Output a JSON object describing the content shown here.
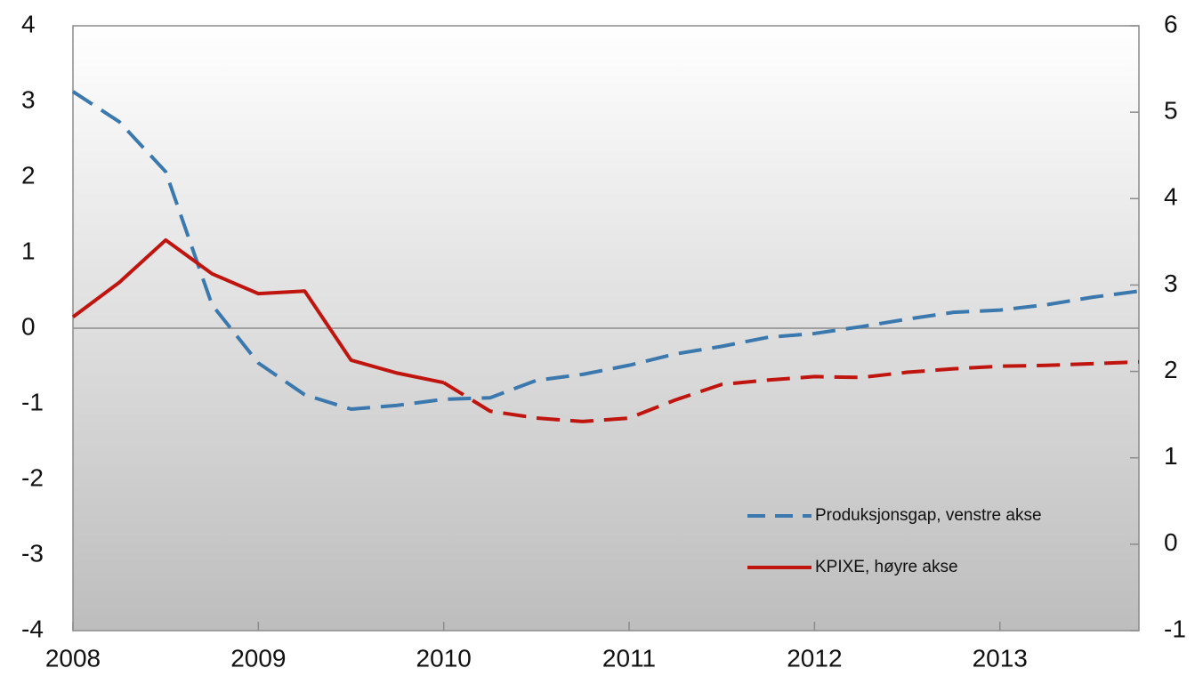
{
  "chart_data": {
    "type": "line",
    "x": [
      2008,
      2008.25,
      2008.5,
      2008.75,
      2009,
      2009.25,
      2009.5,
      2009.75,
      2010,
      2010.25,
      2010.5,
      2010.75,
      2011,
      2011.25,
      2011.5,
      2011.75,
      2012,
      2012.25,
      2012.5,
      2012.75,
      2013,
      2013.25,
      2013.5,
      2013.75
    ],
    "xlim": [
      2008,
      2013.75
    ],
    "xticks": [
      2008,
      2009,
      2010,
      2011,
      2012,
      2013
    ],
    "ylim": [
      -4,
      4
    ],
    "yticks": [
      -4,
      -3,
      -2,
      -1,
      0,
      1,
      2,
      3,
      4
    ],
    "y2lim": [
      -1,
      6
    ],
    "y2ticks": [
      -1,
      0,
      1,
      2,
      3,
      4,
      5,
      6
    ],
    "legend": "lower right",
    "series": [
      {
        "name": "Produksjonsgap, venstre akse",
        "color": "#3a78ad",
        "dashed": true,
        "values": [
          3.13,
          2.73,
          2.07,
          0.31,
          -0.46,
          -0.88,
          -1.07,
          -1.02,
          -0.94,
          -0.92,
          -0.69,
          -0.61,
          -0.49,
          -0.34,
          -0.24,
          -0.12,
          -0.07,
          0.02,
          0.12,
          0.21,
          0.24,
          0.31,
          0.41,
          0.49
        ]
      },
      {
        "name": "KPIXE, høyre akse",
        "color": "#c0140f",
        "axis": "y2",
        "dashed_from": 2010,
        "values": [
          2.63,
          3.03,
          3.52,
          3.13,
          2.9,
          2.93,
          2.13,
          1.98,
          1.87,
          1.54,
          1.46,
          1.42,
          1.46,
          1.67,
          1.85,
          1.9,
          1.94,
          1.93,
          1.99,
          2.03,
          2.06,
          2.07,
          2.09,
          2.11
        ]
      }
    ]
  }
}
